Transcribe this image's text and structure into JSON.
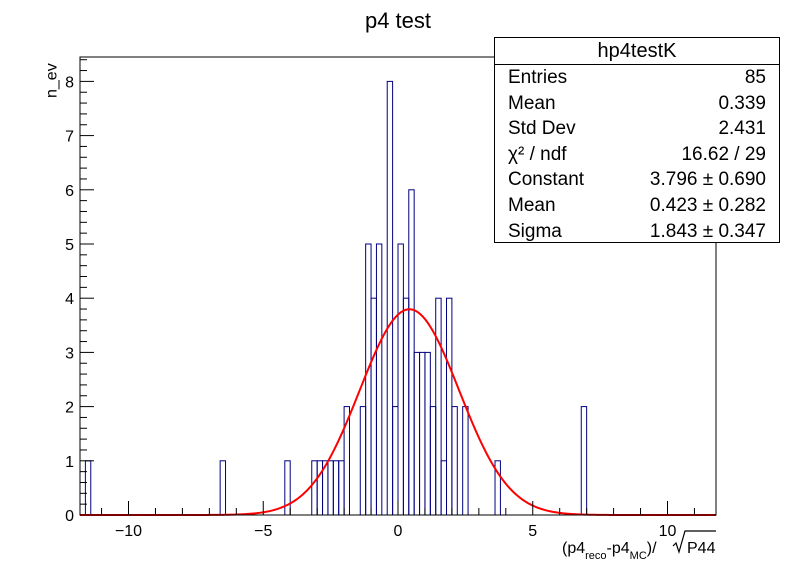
{
  "chart_data": {
    "type": "bar",
    "title": "p4 test",
    "xlabel": "(p4",
    "xlabel_sub1": "reco",
    "xlabel_mid": "-p4",
    "xlabel_sub2": "MC",
    "xlabel_end": ")/",
    "xlabel_sqrt": "P44",
    "ylabel": "n_ev",
    "xlim": [
      -11.8,
      11.8
    ],
    "ylim": [
      0,
      8.45
    ],
    "x_ticks": [
      -10,
      -5,
      0,
      5,
      10
    ],
    "x_tick_labels": [
      "−10",
      "−5",
      "0",
      "5",
      "10"
    ],
    "y_ticks": [
      0,
      1,
      2,
      3,
      4,
      5,
      6,
      7,
      8
    ],
    "y_tick_labels": [
      "0",
      "1",
      "2",
      "3",
      "4",
      "5",
      "6",
      "7",
      "8"
    ],
    "grid": false,
    "bin_edges": [
      -11.8,
      -11.6,
      -11.4,
      -11.2,
      -11.0,
      -10.8,
      -10.6,
      -10.4,
      -10.2,
      -10.0,
      -9.8,
      -9.6,
      -9.4,
      -9.2,
      -9.0,
      -8.8,
      -8.6,
      -8.4,
      -8.2,
      -8.0,
      -7.8,
      -7.6,
      -7.4,
      -7.2,
      -7.0,
      -6.8,
      -6.6,
      -6.4,
      -6.2,
      -6.0,
      -5.8,
      -5.6,
      -5.4,
      -5.2,
      -5.0,
      -4.8,
      -4.6,
      -4.4,
      -4.2,
      -4.0,
      -3.8,
      -3.6,
      -3.4,
      -3.2,
      -3.0,
      -2.8,
      -2.6,
      -2.4,
      -2.2,
      -2.0,
      -1.8,
      -1.6,
      -1.4,
      -1.2,
      -1.0,
      -0.8,
      -0.6,
      -0.4,
      -0.2,
      0.0,
      0.2,
      0.4,
      0.6,
      0.8,
      1.0,
      1.2,
      1.4,
      1.6,
      1.8,
      2.0,
      2.2,
      2.4,
      2.6,
      2.8,
      3.0,
      3.2,
      3.4,
      3.6,
      3.8,
      4.0,
      4.2,
      4.4,
      4.6,
      4.8,
      5.0,
      5.2,
      5.4,
      5.6,
      5.8,
      6.0,
      6.2,
      6.4,
      6.6,
      6.8,
      7.0,
      7.2,
      7.4,
      7.6,
      7.8,
      8.0,
      8.2,
      8.4,
      8.6,
      8.8,
      9.0,
      9.2,
      9.4,
      9.6,
      9.8,
      10.0,
      10.2,
      10.4,
      10.6,
      10.8,
      11.0,
      11.2,
      11.4,
      11.6,
      11.8
    ],
    "series": [
      {
        "color": "#000080",
        "values": [
          0,
          1,
          0,
          0,
          0,
          0,
          0,
          0,
          0,
          0,
          0,
          0,
          0,
          0,
          0,
          0,
          0,
          0,
          0,
          0,
          0,
          0,
          0,
          0,
          0,
          0,
          1,
          0,
          0,
          0,
          0,
          0,
          0,
          0,
          0,
          0,
          0,
          0,
          1,
          0,
          0,
          0,
          0,
          1,
          1,
          1,
          1,
          1,
          1,
          2,
          0,
          0,
          2,
          5,
          4,
          5,
          0,
          8,
          2,
          5,
          4,
          6,
          3,
          3,
          3,
          2,
          4,
          1,
          4,
          2,
          0,
          2,
          0,
          0,
          0,
          0,
          0,
          1,
          0,
          0,
          0,
          0,
          0,
          0,
          0,
          0,
          0,
          0,
          0,
          0,
          0,
          0,
          0,
          2,
          0,
          0,
          0,
          0,
          0,
          0,
          0,
          0,
          0,
          0,
          0,
          0,
          0,
          0,
          0,
          0,
          0,
          0,
          0,
          0,
          0,
          0,
          0,
          0
        ]
      }
    ],
    "fit": {
      "function": "gaus",
      "color": "#ff0000",
      "constant": 3.796,
      "mean": 0.423,
      "sigma": 1.843
    }
  },
  "stats_box": {
    "title": "hp4testK",
    "rows": [
      {
        "label": "Entries",
        "value": "85"
      },
      {
        "label": "Mean",
        "value": "0.339"
      },
      {
        "label": "Std Dev",
        "value": "2.431"
      },
      {
        "label": "χ² / ndf",
        "value": "16.62 / 29"
      },
      {
        "label": "Constant",
        "value": "3.796 ± 0.690"
      },
      {
        "label": "Mean",
        "value": "0.423 ± 0.282"
      },
      {
        "label": "Sigma",
        "value": "1.843 ± 0.347"
      }
    ]
  }
}
